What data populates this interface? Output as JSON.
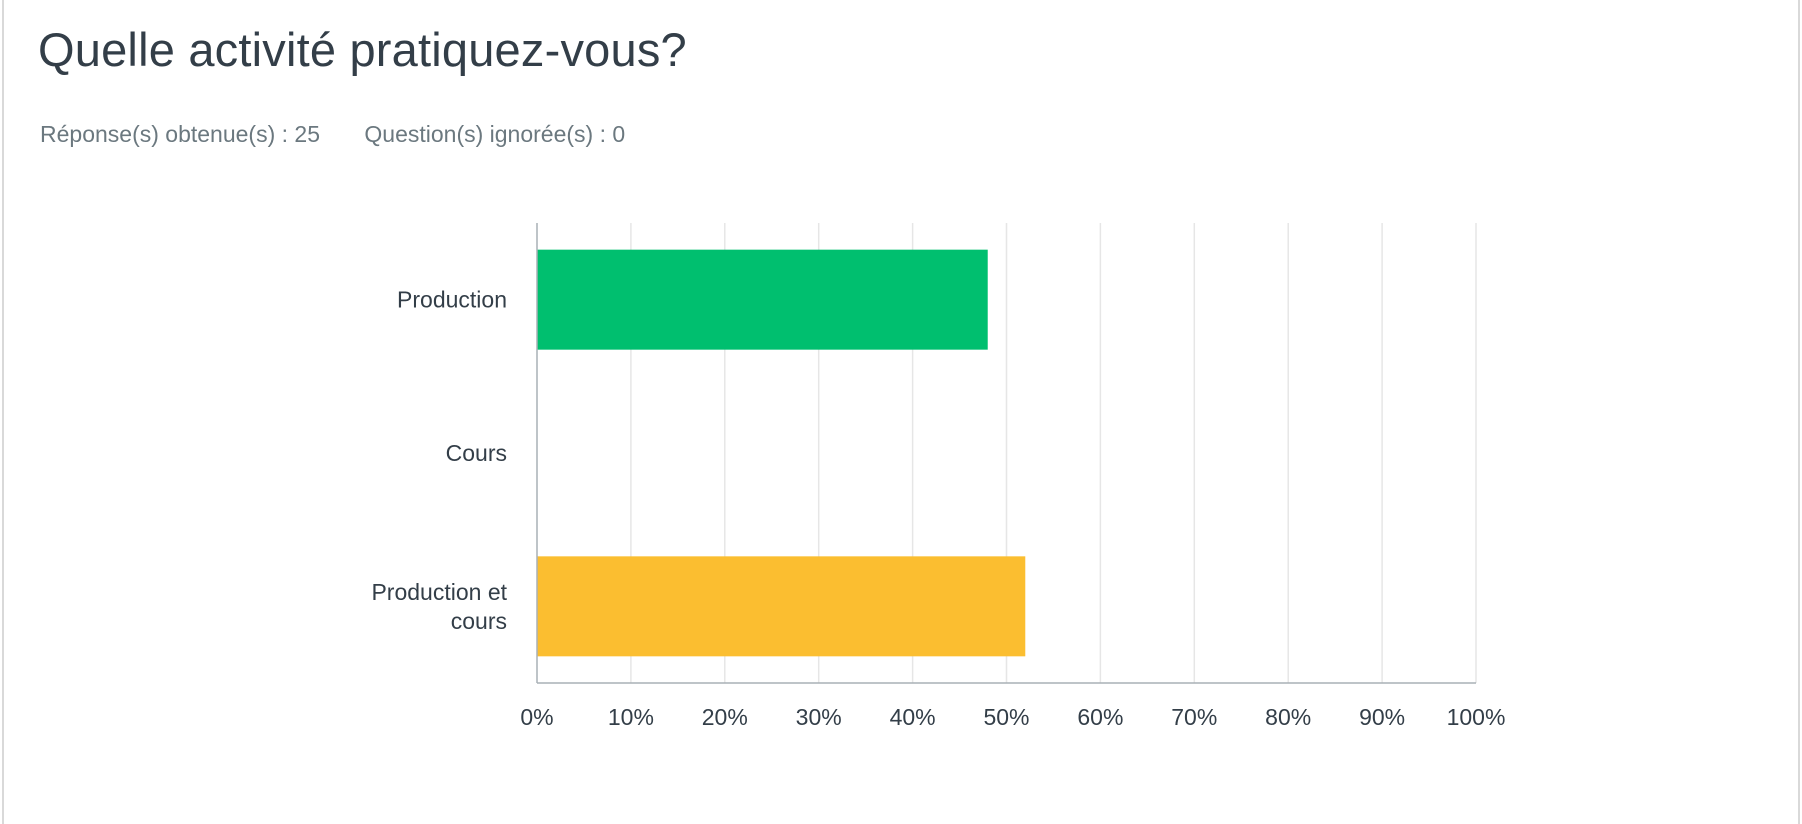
{
  "question": {
    "title": "Quelle activité pratiquez-vous?"
  },
  "stats": {
    "answered": "Réponse(s) obtenue(s) : 25",
    "skipped": "Question(s) ignorée(s) : 0"
  },
  "chart_data": {
    "type": "bar",
    "orientation": "horizontal",
    "categories": [
      [
        "Production"
      ],
      [
        "Cours"
      ],
      [
        "Production et",
        "cours"
      ]
    ],
    "values": [
      48,
      0,
      52
    ],
    "colors": [
      "#00bf6f",
      "#00bf6f",
      "#fbbe30"
    ],
    "xlim": [
      0,
      100
    ],
    "xticks": [
      "0%",
      "10%",
      "20%",
      "30%",
      "40%",
      "50%",
      "60%",
      "70%",
      "80%",
      "90%",
      "100%"
    ],
    "grid": "vertical",
    "legend": "none"
  }
}
